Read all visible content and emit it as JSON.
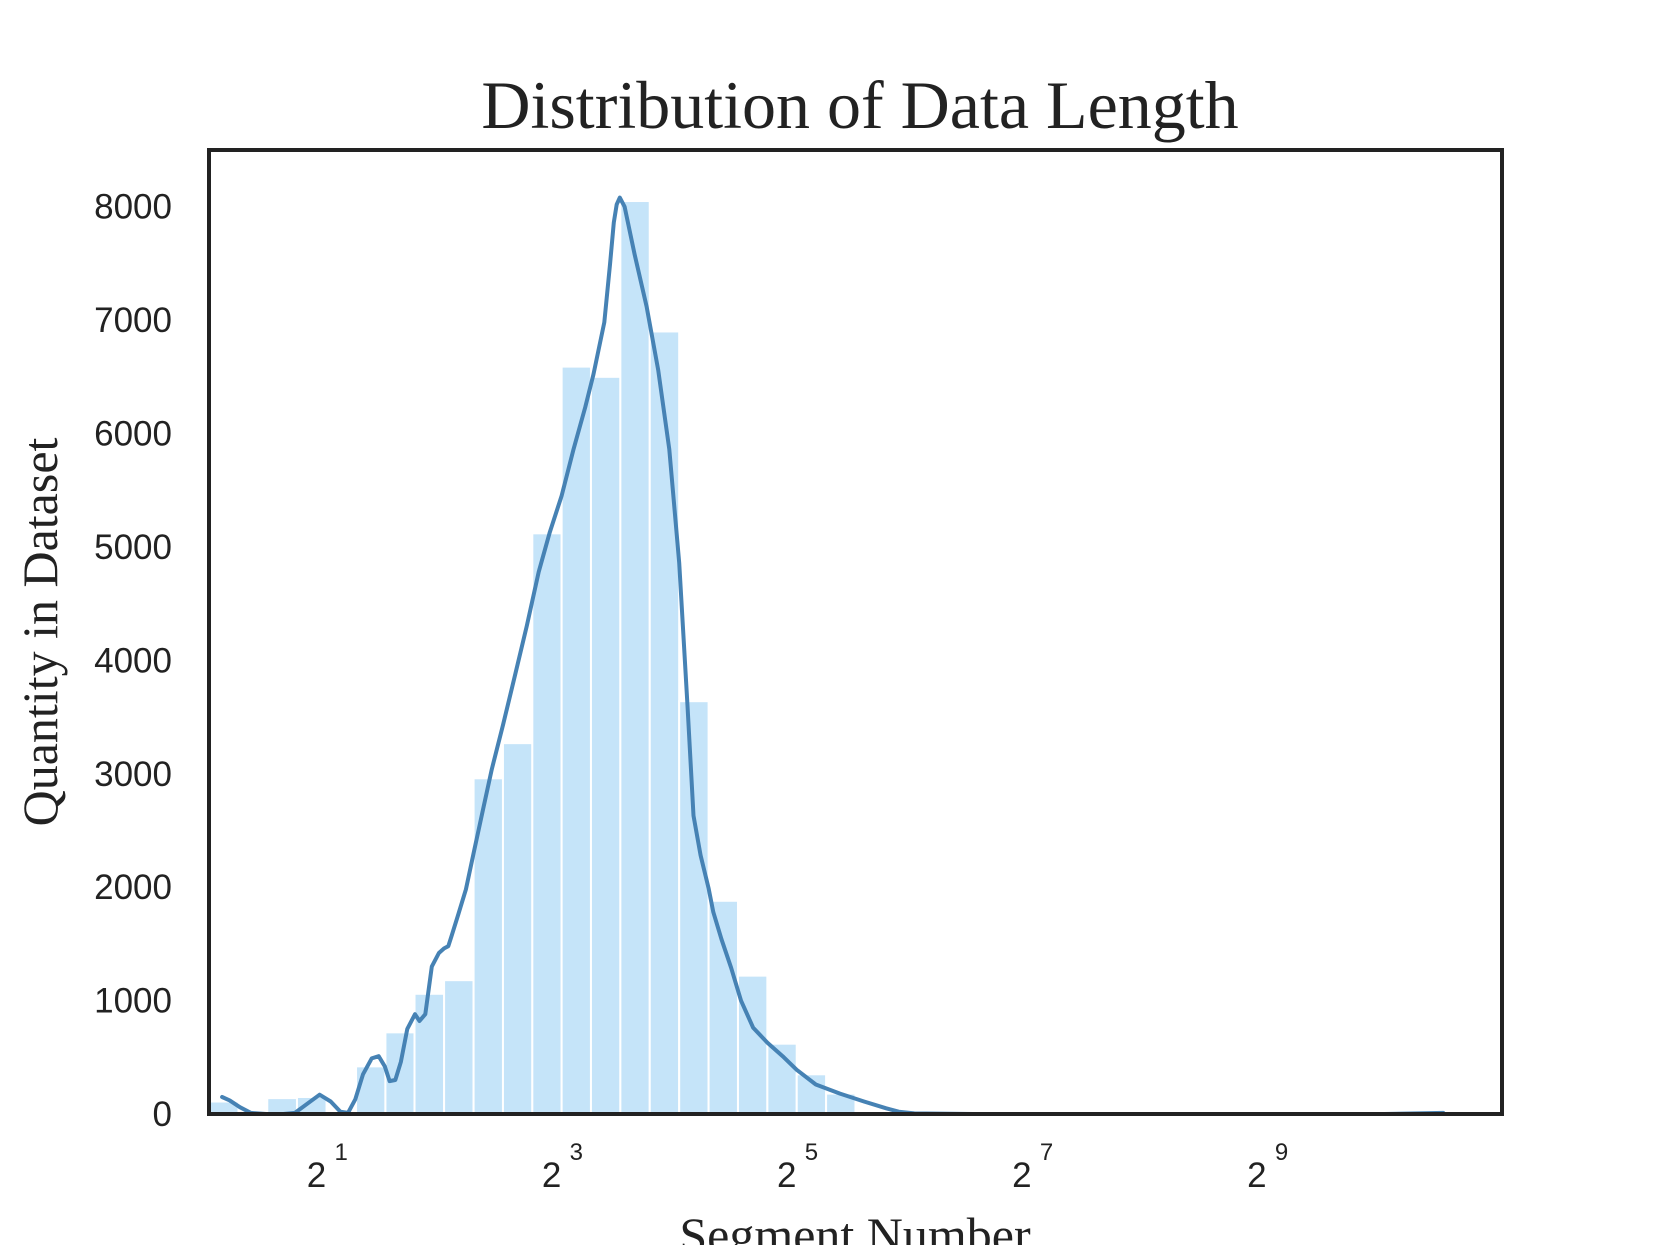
{
  "chart_data": {
    "type": "bar",
    "title": "Distribution of Data Length",
    "xlabel": "Segment Number",
    "ylabel": "Quantity in Dataset",
    "x_scale": "log2",
    "xlim": [
      1,
      2048
    ],
    "ylim": [
      0,
      8500
    ],
    "yticks": [
      0,
      1000,
      2000,
      3000,
      4000,
      5000,
      6000,
      7000,
      8000
    ],
    "xticks": [
      {
        "base": "2",
        "exp": "1",
        "value": 2
      },
      {
        "base": "2",
        "exp": "3",
        "value": 8
      },
      {
        "base": "2",
        "exp": "5",
        "value": 32
      },
      {
        "base": "2",
        "exp": "7",
        "value": 128
      },
      {
        "base": "2",
        "exp": "9",
        "value": 512
      }
    ],
    "bins": [
      {
        "x0": 1.0,
        "x1": 1.19,
        "count": 110
      },
      {
        "x0": 1.19,
        "x1": 1.41,
        "count": 0
      },
      {
        "x0": 1.41,
        "x1": 1.68,
        "count": 140
      },
      {
        "x0": 1.68,
        "x1": 2.0,
        "count": 150
      },
      {
        "x0": 2.0,
        "x1": 2.38,
        "count": 0
      },
      {
        "x0": 2.38,
        "x1": 2.83,
        "count": 420
      },
      {
        "x0": 2.83,
        "x1": 3.36,
        "count": 720
      },
      {
        "x0": 3.36,
        "x1": 4.0,
        "count": 1060
      },
      {
        "x0": 4.0,
        "x1": 4.76,
        "count": 1180
      },
      {
        "x0": 4.76,
        "x1": 5.66,
        "count": 2960
      },
      {
        "x0": 5.66,
        "x1": 6.73,
        "count": 3270
      },
      {
        "x0": 6.73,
        "x1": 8.0,
        "count": 5120
      },
      {
        "x0": 8.0,
        "x1": 9.51,
        "count": 6590
      },
      {
        "x0": 9.51,
        "x1": 11.31,
        "count": 6500
      },
      {
        "x0": 11.31,
        "x1": 13.45,
        "count": 8050
      },
      {
        "x0": 13.45,
        "x1": 16.0,
        "count": 6900
      },
      {
        "x0": 16.0,
        "x1": 19.03,
        "count": 3640
      },
      {
        "x0": 19.03,
        "x1": 22.63,
        "count": 1880
      },
      {
        "x0": 22.63,
        "x1": 26.91,
        "count": 1220
      },
      {
        "x0": 26.91,
        "x1": 32.0,
        "count": 620
      },
      {
        "x0": 32.0,
        "x1": 38.05,
        "count": 350
      },
      {
        "x0": 38.05,
        "x1": 45.25,
        "count": 180
      }
    ],
    "kde": {
      "x": [
        1.08,
        1.13,
        1.2,
        1.28,
        1.4,
        1.55,
        1.66,
        1.8,
        1.92,
        2.05,
        2.17,
        2.27,
        2.37,
        2.48,
        2.61,
        2.72,
        2.82,
        2.9,
        3.0,
        3.1,
        3.22,
        3.37,
        3.46,
        3.58,
        3.72,
        3.88,
        4.0,
        4.1,
        4.18,
        4.35,
        4.55,
        4.76,
        5.03,
        5.3,
        5.66,
        6.06,
        6.51,
        6.99,
        7.46,
        8.0,
        8.58,
        9.19,
        9.65,
        10.29,
        10.64,
        10.88,
        11.07,
        11.27,
        11.6,
        12.3,
        13.2,
        14.14,
        15.09,
        16.0,
        16.8,
        17.41,
        18.15,
        19.03,
        19.56,
        20.54,
        21.73,
        23.04,
        24.76,
        26.91,
        29.66,
        32.0,
        35.8,
        41.3,
        47.57,
        54.23,
        58.43,
        64.0,
        90.51,
        128.0,
        181.02,
        256.0,
        512.0,
        1024.0,
        1448.15
      ],
      "y": [
        150,
        120,
        60,
        10,
        0,
        0,
        10,
        100,
        170,
        110,
        20,
        10,
        130,
        350,
        490,
        510,
        420,
        290,
        300,
        460,
        750,
        880,
        820,
        880,
        1300,
        1420,
        1460,
        1480,
        1570,
        1760,
        1980,
        2300,
        2680,
        3040,
        3430,
        3850,
        4300,
        4780,
        5130,
        5450,
        5860,
        6230,
        6520,
        6980,
        7490,
        7860,
        8020,
        8080,
        8000,
        7580,
        7120,
        6560,
        5860,
        4860,
        3600,
        2630,
        2280,
        1990,
        1780,
        1540,
        1290,
        1000,
        760,
        630,
        500,
        390,
        260,
        180,
        110,
        50,
        20,
        5,
        0,
        0,
        0,
        0,
        0,
        0,
        10
      ]
    },
    "colors": {
      "bar": "#c5e4f9",
      "bar_edge": "#ffffff",
      "line": "#4682b4",
      "frame": "#222222",
      "text": "#222222"
    },
    "grid": false,
    "legend": "none"
  }
}
